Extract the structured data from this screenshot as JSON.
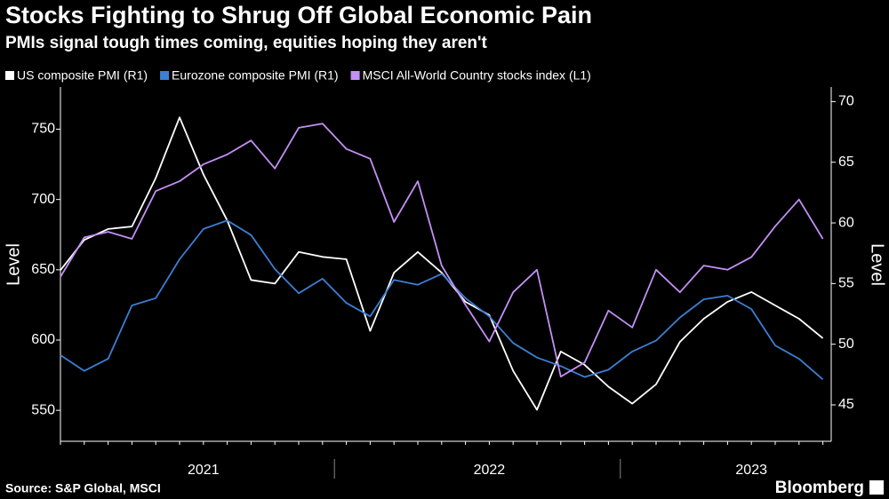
{
  "chart_data": {
    "type": "line",
    "title": "Stocks Fighting to Shrug Off Global Economic Pain",
    "subtitle": "PMIs signal tough times coming, equities hoping they aren't",
    "y_label": "Level",
    "y2_label": "Level",
    "source": "Source: S&P Global, MSCI",
    "brand": "Bloomberg",
    "categories": [
      null,
      null,
      null,
      null,
      null,
      null,
      "2021",
      null,
      null,
      null,
      null,
      null,
      null,
      null,
      null,
      null,
      null,
      null,
      "2022",
      null,
      null,
      null,
      null,
      null,
      null,
      null,
      null,
      null,
      null,
      "2023",
      null,
      null,
      null
    ],
    "series": [
      {
        "name": "US composite PMI (R1)",
        "color": "#ffffff",
        "axis": "y2",
        "values": [
          56.1,
          58.6,
          59.5,
          59.7,
          63.7,
          68.7,
          64,
          60.2,
          55.3,
          55,
          57.6,
          57.2,
          57,
          51.1,
          55.9,
          57.6,
          55.9,
          53.5,
          52.4,
          47.8,
          44.6,
          49.4,
          48.3,
          46.5,
          45.1,
          46.7,
          50.2,
          52.1,
          53.5,
          54.3,
          53.2,
          52.1,
          50.5
        ]
      },
      {
        "name": "Eurozone composite PMI (R1)",
        "color": "#3b7fd4",
        "axis": "y2",
        "values": [
          49.1,
          47.8,
          48.8,
          53.2,
          53.8,
          57,
          59.5,
          60.2,
          59,
          56.2,
          54.2,
          55.4,
          53.4,
          52.3,
          55.3,
          54.9,
          55.8,
          53.8,
          52.3,
          50.1,
          48.9,
          48.2,
          47.3,
          47.9,
          49.4,
          50.3,
          52.2,
          53.7,
          54,
          52.9,
          49.9,
          48.8,
          47.1
        ]
      },
      {
        "name": "MSCI All-World Country stocks index (L1)",
        "color": "#c390f5",
        "axis": "y",
        "values": [
          645,
          673,
          677,
          672,
          706,
          713,
          725,
          732,
          742,
          722,
          751,
          754,
          736,
          729,
          684,
          713,
          653,
          625,
          599,
          634,
          650,
          574,
          584,
          621,
          609,
          650,
          634,
          653,
          650,
          659,
          681,
          700,
          672
        ]
      }
    ],
    "ylim": [
      528,
      780
    ],
    "yticks": [
      550,
      600,
      650,
      700,
      750
    ],
    "y2lim": [
      42,
      71.2
    ],
    "y2ticks": [
      45,
      50,
      55,
      60,
      65,
      70
    ]
  }
}
